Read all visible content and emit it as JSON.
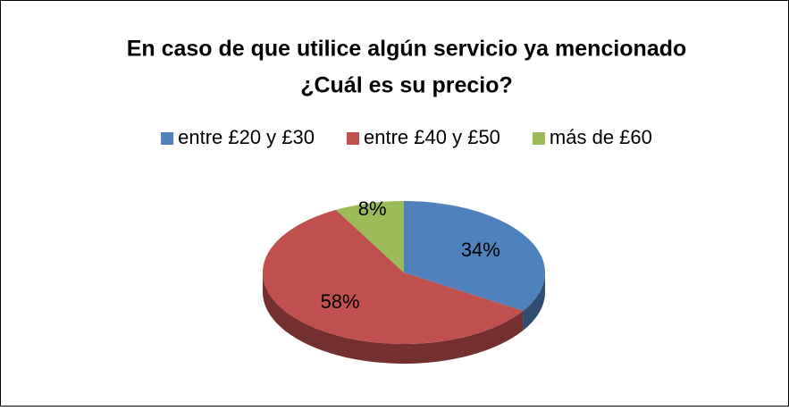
{
  "chart_data": {
    "type": "pie3d",
    "title": [
      "En caso de que utilice algún servicio ya mencionado",
      "¿Cuál es su precio?"
    ],
    "categories": [
      "entre £20 y £30",
      "entre £40 y £50",
      "más de £60"
    ],
    "values": [
      34,
      58,
      8
    ],
    "value_labels": [
      "34%",
      "58%",
      "8%"
    ],
    "colors": [
      "#4f81bd",
      "#c0504d",
      "#9bbb59"
    ],
    "legend": "top"
  }
}
